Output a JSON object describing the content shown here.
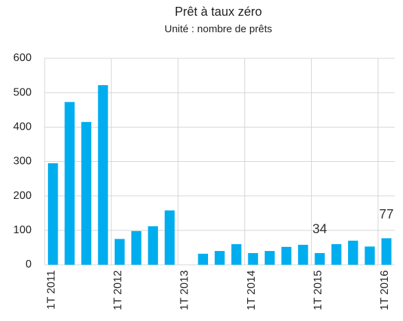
{
  "chart_data": {
    "type": "bar",
    "title": "Prêt à taux zéro",
    "subtitle": "Unité : nombre de prêts",
    "categories": [
      "1T 2011",
      null,
      null,
      null,
      "1T 2012",
      null,
      null,
      null,
      "1T 2013",
      null,
      null,
      null,
      "1T 2014",
      null,
      null,
      null,
      "1T 2015",
      null,
      null,
      null,
      "1T 2016"
    ],
    "values": [
      295,
      473,
      415,
      522,
      75,
      98,
      112,
      158,
      0,
      32,
      40,
      60,
      34,
      40,
      52,
      58,
      34,
      60,
      70,
      53,
      77
    ],
    "value_labels": [
      null,
      null,
      null,
      null,
      null,
      null,
      null,
      null,
      null,
      null,
      null,
      null,
      null,
      null,
      null,
      null,
      "34",
      null,
      null,
      null,
      "77"
    ],
    "color": "#00aeef",
    "ylim": [
      0,
      600
    ],
    "yticks": [
      0,
      100,
      200,
      300,
      400,
      500,
      600
    ],
    "grid": true
  }
}
